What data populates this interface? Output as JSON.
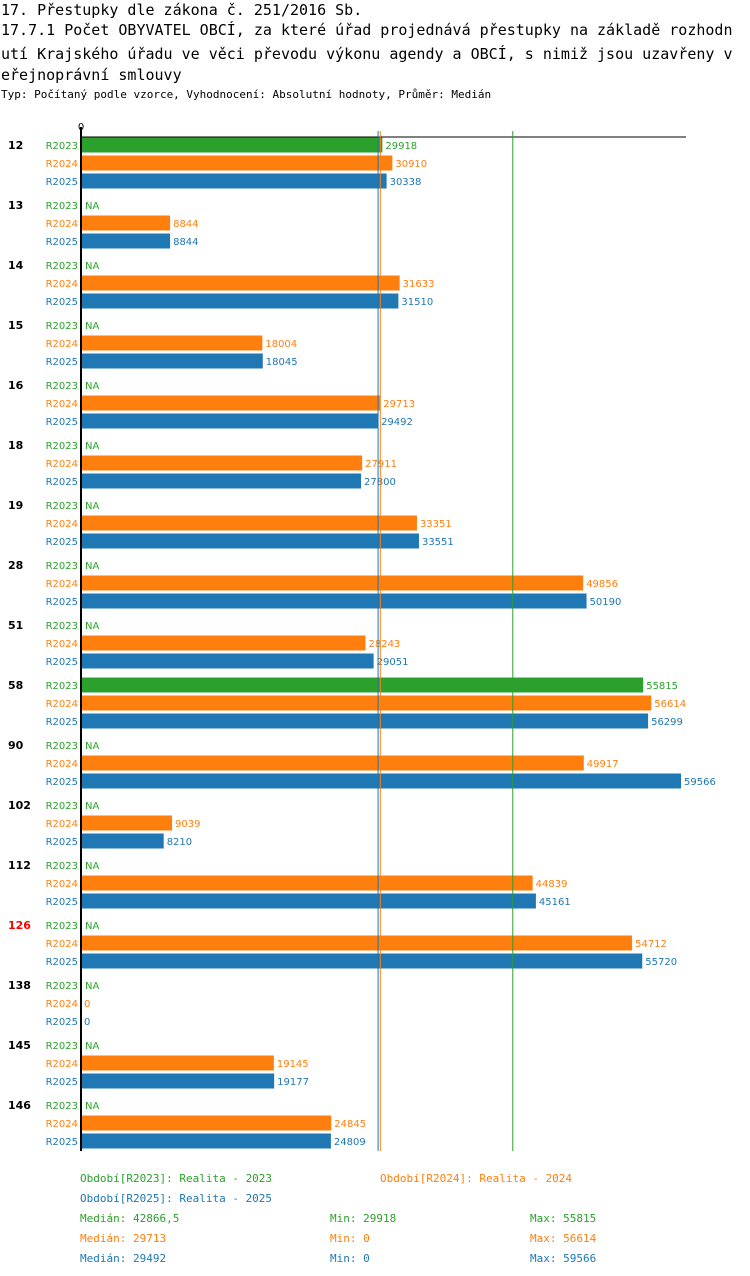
{
  "title_lines": [
    "17. Přestupky dle zákona č. 251/2016 Sb.",
    "17.7.1 Počet OBYVATEL OBCÍ, za které úřad projednává přestupky na základě rozhodn",
    "utí Krajského úřadu ve věci převodu výkonu agendy a OBCÍ, s nimiž jsou uzavřeny v",
    "eřejnoprávní smlouvy"
  ],
  "subtitle": "Typ: Počítaný podle vzorce, Vyhodnocení: Absolutní hodnoty, Průměr: Medián",
  "colors": {
    "R2023": "#2ca02c",
    "R2024": "#ff7f0e",
    "R2025": "#1f77b4",
    "highlight": "#ff0000",
    "axis": "#000000"
  },
  "chart_data": {
    "type": "bar",
    "orientation": "horizontal",
    "axis_zero_label": "0",
    "x_range": [
      0,
      59566
    ],
    "series_names": [
      "R2023",
      "R2024",
      "R2025"
    ],
    "na_label": "NA",
    "groups": [
      {
        "label": "12",
        "highlight": false,
        "values": [
          29918,
          30910,
          30338
        ]
      },
      {
        "label": "13",
        "highlight": false,
        "values": [
          null,
          8844,
          8844
        ]
      },
      {
        "label": "14",
        "highlight": false,
        "values": [
          null,
          31633,
          31510
        ]
      },
      {
        "label": "15",
        "highlight": false,
        "values": [
          null,
          18004,
          18045
        ]
      },
      {
        "label": "16",
        "highlight": false,
        "values": [
          null,
          29713,
          29492
        ]
      },
      {
        "label": "18",
        "highlight": false,
        "values": [
          null,
          27911,
          27800
        ]
      },
      {
        "label": "19",
        "highlight": false,
        "values": [
          null,
          33351,
          33551
        ]
      },
      {
        "label": "28",
        "highlight": false,
        "values": [
          null,
          49856,
          50190
        ]
      },
      {
        "label": "51",
        "highlight": false,
        "values": [
          null,
          28243,
          29051
        ]
      },
      {
        "label": "58",
        "highlight": false,
        "values": [
          55815,
          56614,
          56299
        ]
      },
      {
        "label": "90",
        "highlight": false,
        "values": [
          null,
          49917,
          59566
        ]
      },
      {
        "label": "102",
        "highlight": false,
        "values": [
          null,
          9039,
          8210
        ]
      },
      {
        "label": "112",
        "highlight": false,
        "values": [
          null,
          44839,
          45161
        ]
      },
      {
        "label": "126",
        "highlight": true,
        "values": [
          null,
          54712,
          55720
        ]
      },
      {
        "label": "138",
        "highlight": false,
        "values": [
          null,
          0,
          0
        ]
      },
      {
        "label": "145",
        "highlight": false,
        "values": [
          null,
          19145,
          19177
        ]
      },
      {
        "label": "146",
        "highlight": false,
        "values": [
          null,
          24845,
          24809
        ]
      }
    ],
    "median_lines": [
      42866.5,
      29713,
      29492
    ],
    "legend": {
      "periods": [
        {
          "series": "R2023",
          "text": "Období[R2023]: Realita - 2023"
        },
        {
          "series": "R2024",
          "text": "Období[R2024]: Realita - 2024"
        },
        {
          "series": "R2025",
          "text": "Období[R2025]: Realita - 2025"
        }
      ],
      "stats": [
        {
          "series": "R2023",
          "median": "Medián: 42866,5",
          "min": "Min: 29918",
          "max": "Max: 55815"
        },
        {
          "series": "R2024",
          "median": "Medián: 29713",
          "min": "Min: 0",
          "max": "Max: 56614"
        },
        {
          "series": "R2025",
          "median": "Medián: 29492",
          "min": "Min: 0",
          "max": "Max: 59566"
        }
      ]
    }
  }
}
